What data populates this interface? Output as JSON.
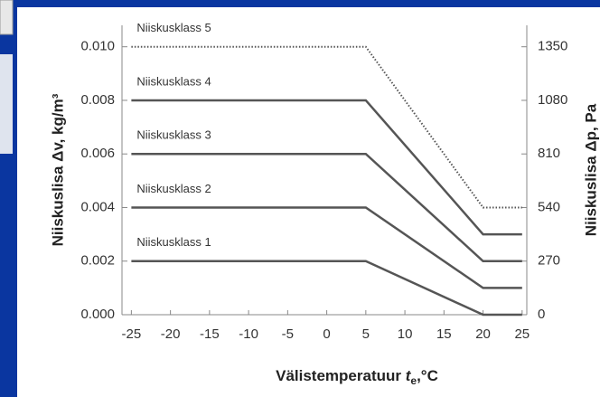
{
  "chart_data": {
    "type": "line",
    "y_label": "Niiskuslisa Δv, kg/m³",
    "y2_label": "Niiskuslisa Δp, Pa",
    "x_label": {
      "text": "Välistemperatuur ",
      "var": "t",
      "sub": "e",
      "unit": ",°C"
    },
    "x": [
      -25,
      5,
      20,
      25
    ],
    "series": [
      {
        "name": "Niiskusklass 1",
        "color": "#555555",
        "dash": "solid",
        "values": [
          0.002,
          0.002,
          0.0,
          0.0
        ]
      },
      {
        "name": "Niiskusklass 2",
        "color": "#555555",
        "dash": "solid",
        "values": [
          0.004,
          0.004,
          0.001,
          0.001
        ]
      },
      {
        "name": "Niiskusklass 3",
        "color": "#555555",
        "dash": "solid",
        "values": [
          0.006,
          0.006,
          0.002,
          0.002
        ]
      },
      {
        "name": "Niiskusklass 4",
        "color": "#555555",
        "dash": "solid",
        "values": [
          0.008,
          0.008,
          0.003,
          0.003
        ]
      },
      {
        "name": "Niiskusklass 5",
        "color": "#555555",
        "dash": "dotted",
        "values": [
          0.01,
          0.01,
          0.004,
          0.004
        ]
      }
    ],
    "xlim": [
      -26.2,
      25.6
    ],
    "xticks": [
      -25,
      -20,
      -15,
      -10,
      -5,
      0,
      5,
      10,
      15,
      20,
      25
    ],
    "ylim": [
      0,
      0.0108
    ],
    "yticks": [
      {
        "value": 0,
        "label": "0.000"
      },
      {
        "value": 0.002,
        "label": "0.002"
      },
      {
        "value": 0.004,
        "label": "0.004"
      },
      {
        "value": 0.006,
        "label": "0.006"
      },
      {
        "value": 0.008,
        "label": "0.008"
      },
      {
        "value": 0.01,
        "label": "0.010"
      }
    ],
    "y2lim": [
      0,
      1458
    ],
    "y2ticks": [
      0,
      270,
      540,
      810,
      1080,
      1350
    ]
  }
}
